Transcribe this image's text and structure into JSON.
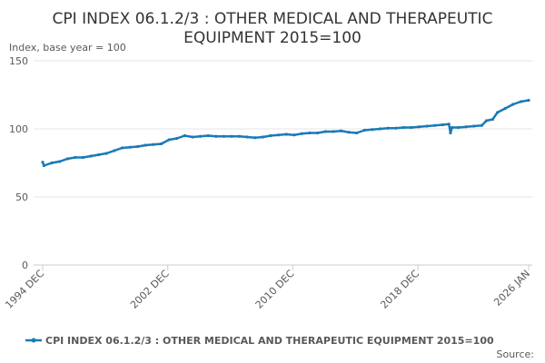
{
  "chart_data": {
    "type": "line",
    "title": [
      "CPI INDEX 06.1.2/3 : OTHER MEDICAL AND THERAPEUTIC",
      "EQUIPMENT 2015=100"
    ],
    "y_label": "Index, base year = 100",
    "source": "Source:",
    "xlim": [
      1994.917,
      2026.0
    ],
    "xticks": [
      {
        "value": 1994.917,
        "label": "1994 DEC"
      },
      {
        "value": 2002.917,
        "label": "2002 DEC"
      },
      {
        "value": 2010.917,
        "label": "2010 DEC"
      },
      {
        "value": 2018.917,
        "label": "2018 DEC"
      },
      {
        "value": 2026.0,
        "label": "2026 JAN"
      }
    ],
    "ylim": [
      0,
      150
    ],
    "yticks": [
      0,
      50,
      100,
      150
    ],
    "grid": true,
    "x": [
      1994.917,
      1995.0,
      1995.5,
      1996.0,
      1996.5,
      1997.0,
      1997.5,
      1998.0,
      1998.5,
      1999.0,
      1999.5,
      2000.0,
      2000.5,
      2001.0,
      2001.5,
      2002.0,
      2002.5,
      2003.0,
      2003.5,
      2004.0,
      2004.5,
      2005.0,
      2005.5,
      2006.0,
      2006.5,
      2007.0,
      2007.5,
      2008.0,
      2008.5,
      2009.0,
      2009.5,
      2010.0,
      2010.5,
      2011.0,
      2011.5,
      2012.0,
      2012.5,
      2013.0,
      2013.5,
      2014.0,
      2014.5,
      2015.0,
      2015.5,
      2016.0,
      2016.5,
      2017.0,
      2017.5,
      2018.0,
      2018.5,
      2019.0,
      2019.5,
      2020.0,
      2020.5,
      2020.9,
      2021.0,
      2021.1,
      2021.5,
      2022.0,
      2022.5,
      2023.0,
      2023.3,
      2023.7,
      2024.0,
      2024.5,
      2025.0,
      2025.5,
      2026.0
    ],
    "series": [
      {
        "name": "CPI INDEX 06.1.2/3 : OTHER MEDICAL AND THERAPEUTIC EQUIPMENT 2015=100",
        "color": "#1a7ab8",
        "values": [
          75.5,
          73,
          75,
          76,
          78,
          79,
          79,
          80,
          81,
          82,
          84,
          86,
          86.5,
          87,
          88,
          88.5,
          89,
          92,
          93,
          95,
          94,
          94.5,
          95,
          94.5,
          94.5,
          94.5,
          94.5,
          94,
          93.5,
          94,
          95,
          95.5,
          96,
          95.5,
          96.5,
          97,
          97,
          98,
          98,
          98.5,
          97.5,
          97,
          99,
          99.5,
          100,
          100.5,
          100.5,
          101,
          101,
          101.5,
          102,
          102.5,
          103,
          103.5,
          97,
          101,
          101,
          101.5,
          102,
          102.5,
          106,
          107,
          112,
          115,
          118,
          120,
          121
        ]
      }
    ]
  }
}
